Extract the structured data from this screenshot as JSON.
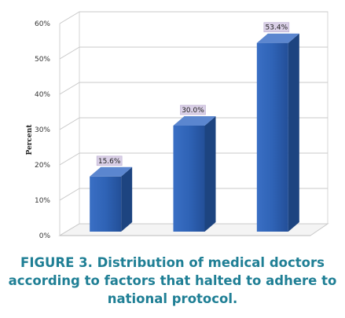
{
  "caption": {
    "line1": "FIGURE 3. Distribution of medical doctors",
    "line2": "according to factors that halted to adhere to",
    "line3": "national protocol."
  },
  "chart_data": {
    "type": "bar",
    "title": "FIGURE 3. Distribution of medical doctors according to factors that halted to adhere to national protocol.",
    "ylabel": "Percent",
    "xlabel": "",
    "categories": [
      "",
      "",
      ""
    ],
    "values": [
      15.6,
      30.0,
      53.4
    ],
    "data_labels": [
      "15.6%",
      "30.0%",
      "53.4%"
    ],
    "yticks": [
      "0%",
      "10%",
      "20%",
      "30%",
      "40%",
      "50%",
      "60%"
    ],
    "ylim": [
      0,
      60
    ],
    "grid": true,
    "style": "3d-column",
    "bar_color": "#2e62b4",
    "label_box_color": "#d9cfe6"
  }
}
